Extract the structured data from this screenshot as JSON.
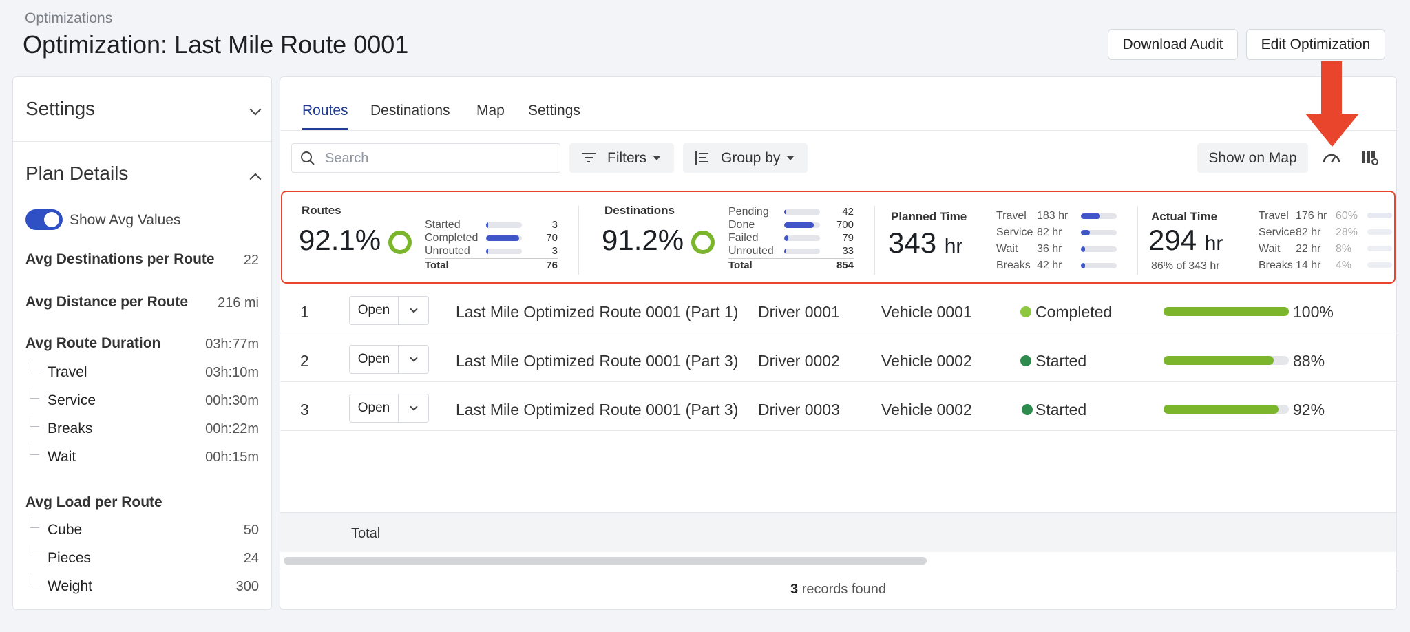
{
  "breadcrumb": "Optimizations",
  "title": "Optimization: Last Mile Route 0001",
  "actions": {
    "download": "Download Audit",
    "edit": "Edit Optimization"
  },
  "sidebar": {
    "settings_label": "Settings",
    "plan_details_label": "Plan Details",
    "toggle_label": "Show Avg Values",
    "avg_destinations": {
      "label": "Avg Destinations per Route",
      "value": "22"
    },
    "avg_distance": {
      "label": "Avg Distance per Route",
      "value": "216 mi"
    },
    "avg_duration": {
      "label": "Avg Route Duration",
      "value": "03h:77m",
      "items": [
        {
          "label": "Travel",
          "value": "03h:10m"
        },
        {
          "label": "Service",
          "value": "00h:30m"
        },
        {
          "label": "Breaks",
          "value": "00h:22m"
        },
        {
          "label": "Wait",
          "value": "00h:15m"
        }
      ]
    },
    "avg_load": {
      "label": "Avg Load per Route",
      "items": [
        {
          "label": "Cube",
          "value": "50"
        },
        {
          "label": "Pieces",
          "value": "24"
        },
        {
          "label": "Weight",
          "value": "300"
        }
      ]
    }
  },
  "tabs": [
    "Routes",
    "Destinations",
    "Map",
    "Settings"
  ],
  "toolbar": {
    "search_placeholder": "Search",
    "filters": "Filters",
    "group_by": "Group by",
    "show_on_map": "Show on Map"
  },
  "kpi": {
    "routes": {
      "title": "Routes",
      "pct": "92.1%",
      "total_label": "Total",
      "total": "76",
      "rows": [
        {
          "label": "Started",
          "value": "3",
          "fill": 0.04
        },
        {
          "label": "Completed",
          "value": "70",
          "fill": 0.92
        },
        {
          "label": "Unrouted",
          "value": "3",
          "fill": 0.04
        }
      ]
    },
    "destinations": {
      "title": "Destinations",
      "pct": "91.2%",
      "total_label": "Total",
      "total": "854",
      "rows": [
        {
          "label": "Pending",
          "value": "42",
          "fill": 0.05
        },
        {
          "label": "Done",
          "value": "700",
          "fill": 0.82
        },
        {
          "label": "Failed",
          "value": "79",
          "fill": 0.09
        },
        {
          "label": "Unrouted",
          "value": "33",
          "fill": 0.04
        }
      ]
    },
    "planned": {
      "title": "Planned Time",
      "value": "343",
      "unit": "hr",
      "rows": [
        {
          "label": "Travel",
          "value": "183 hr",
          "fill": 0.53
        },
        {
          "label": "Service",
          "value": "82 hr",
          "fill": 0.24
        },
        {
          "label": "Wait",
          "value": "36 hr",
          "fill": 0.1
        },
        {
          "label": "Breaks",
          "value": "42 hr",
          "fill": 0.12
        }
      ]
    },
    "actual": {
      "title": "Actual Time",
      "value": "294",
      "unit": "hr",
      "sub": "86% of 343 hr",
      "rows": [
        {
          "label": "Travel",
          "value": "176 hr",
          "pct": "60%"
        },
        {
          "label": "Service",
          "value": "82 hr",
          "pct": "28%"
        },
        {
          "label": "Wait",
          "value": "22 hr",
          "pct": "8%"
        },
        {
          "label": "Breaks",
          "value": "14 hr",
          "pct": "4%"
        }
      ]
    }
  },
  "routes": [
    {
      "num": "1",
      "open": "Open",
      "name": "Last Mile Optimized Route 0001 (Part 1)",
      "driver": "Driver 0001",
      "vehicle": "Vehicle 0001",
      "status": "Completed",
      "status_color": "#8dc63f",
      "progress": 100,
      "progress_label": "100%"
    },
    {
      "num": "2",
      "open": "Open",
      "name": "Last Mile Optimized Route 0001 (Part 3)",
      "driver": "Driver 0002",
      "vehicle": "Vehicle 0002",
      "status": "Started",
      "status_color": "#2e8b4e",
      "progress": 88,
      "progress_label": "88%"
    },
    {
      "num": "3",
      "open": "Open",
      "name": "Last Mile Optimized Route 0001 (Part 3)",
      "driver": "Driver 0003",
      "vehicle": "Vehicle 0002",
      "status": "Started",
      "status_color": "#2e8b4e",
      "progress": 92,
      "progress_label": "92%"
    }
  ],
  "footer": {
    "total_label": "Total",
    "records_count": "3",
    "records_text": "records found"
  },
  "colors": {
    "accent": "#1f3a93",
    "highlight": "#e8452c",
    "progress": "#7bb52c"
  }
}
